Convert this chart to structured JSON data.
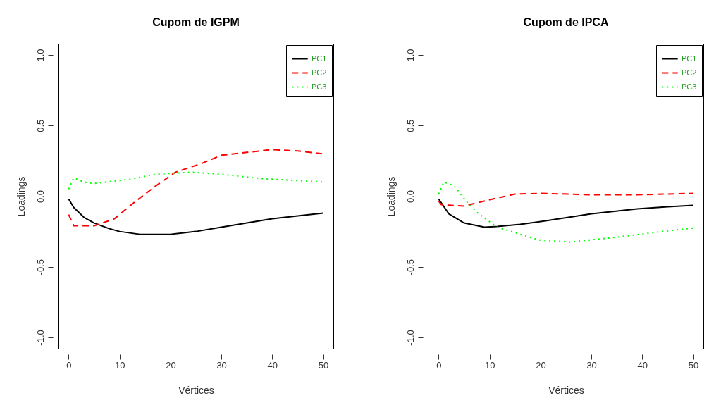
{
  "chart_data": [
    {
      "type": "line",
      "title": "Cupom de IGPM",
      "xlabel": "Vértices",
      "ylabel": "Loadings",
      "xlim": [
        -2,
        52
      ],
      "ylim": [
        -1.08,
        1.08
      ],
      "xticks": [
        0,
        10,
        20,
        30,
        40,
        50
      ],
      "yticks": [
        {
          "value": -1,
          "label": "-1.0"
        },
        {
          "value": -0.5,
          "label": "-0.5"
        },
        {
          "value": 0,
          "label": "0.0"
        },
        {
          "value": 0.5,
          "label": "0.5"
        },
        {
          "value": 1,
          "label": "1.0"
        }
      ],
      "grid": false,
      "legend": "top right",
      "marker": "none",
      "series": [
        {
          "name": "PC1",
          "color": "#000000",
          "line_style": "solid",
          "x": [
            0,
            1,
            3,
            5,
            8,
            10,
            14,
            20,
            25,
            30,
            35,
            40,
            45,
            50
          ],
          "values": [
            -0.02,
            -0.08,
            -0.15,
            -0.19,
            -0.23,
            -0.25,
            -0.27,
            -0.27,
            -0.25,
            -0.22,
            -0.19,
            -0.16,
            -0.14,
            -0.12
          ]
        },
        {
          "name": "PC2",
          "color": "#ff0000",
          "line_style": "dashed",
          "x": [
            0,
            1,
            5,
            9,
            13,
            17,
            21,
            26,
            30,
            35,
            40,
            45,
            50
          ],
          "values": [
            -0.13,
            -0.21,
            -0.21,
            -0.16,
            -0.04,
            0.07,
            0.17,
            0.23,
            0.29,
            0.31,
            0.33,
            0.32,
            0.3
          ]
        },
        {
          "name": "PC3",
          "color": "#00ff00",
          "line_style": "dotted",
          "x": [
            0,
            1,
            3,
            5,
            12,
            17,
            24,
            30,
            38,
            45,
            50
          ],
          "values": [
            0.05,
            0.13,
            0.1,
            0.09,
            0.12,
            0.155,
            0.17,
            0.155,
            0.125,
            0.11,
            0.1
          ]
        }
      ]
    },
    {
      "type": "line",
      "title": "Cupom de IPCA",
      "xlabel": "Vértices",
      "ylabel": "Loadings",
      "xlim": [
        -2,
        52
      ],
      "ylim": [
        -1.08,
        1.08
      ],
      "xticks": [
        0,
        10,
        20,
        30,
        40,
        50
      ],
      "yticks": [
        {
          "value": -1,
          "label": "-1.0"
        },
        {
          "value": -0.5,
          "label": "-0.5"
        },
        {
          "value": 0,
          "label": "0.0"
        },
        {
          "value": 0.5,
          "label": "0.5"
        },
        {
          "value": 1,
          "label": "1.0"
        }
      ],
      "grid": false,
      "legend": "top right",
      "marker": "none",
      "series": [
        {
          "name": "PC1",
          "color": "#000000",
          "line_style": "solid",
          "x": [
            0,
            2,
            5,
            9,
            11.5,
            16,
            21,
            30,
            39,
            45,
            50
          ],
          "values": [
            -0.02,
            -0.125,
            -0.19,
            -0.22,
            -0.215,
            -0.2,
            -0.175,
            -0.125,
            -0.09,
            -0.075,
            -0.065
          ]
        },
        {
          "name": "PC2",
          "color": "#ff0000",
          "line_style": "dashed",
          "x": [
            0,
            0.5,
            5,
            10,
            15,
            20,
            30,
            39,
            50
          ],
          "values": [
            -0.035,
            -0.06,
            -0.07,
            -0.025,
            0.015,
            0.02,
            0.01,
            0.01,
            0.02
          ]
        },
        {
          "name": "PC3",
          "color": "#00ff00",
          "line_style": "dotted",
          "x": [
            0,
            1,
            3,
            5.4,
            7.7,
            11.5,
            19.7,
            25.7,
            35,
            44,
            50
          ],
          "values": [
            0.015,
            0.1,
            0.075,
            -0.035,
            -0.12,
            -0.22,
            -0.31,
            -0.325,
            -0.29,
            -0.25,
            -0.225
          ]
        }
      ]
    }
  ]
}
